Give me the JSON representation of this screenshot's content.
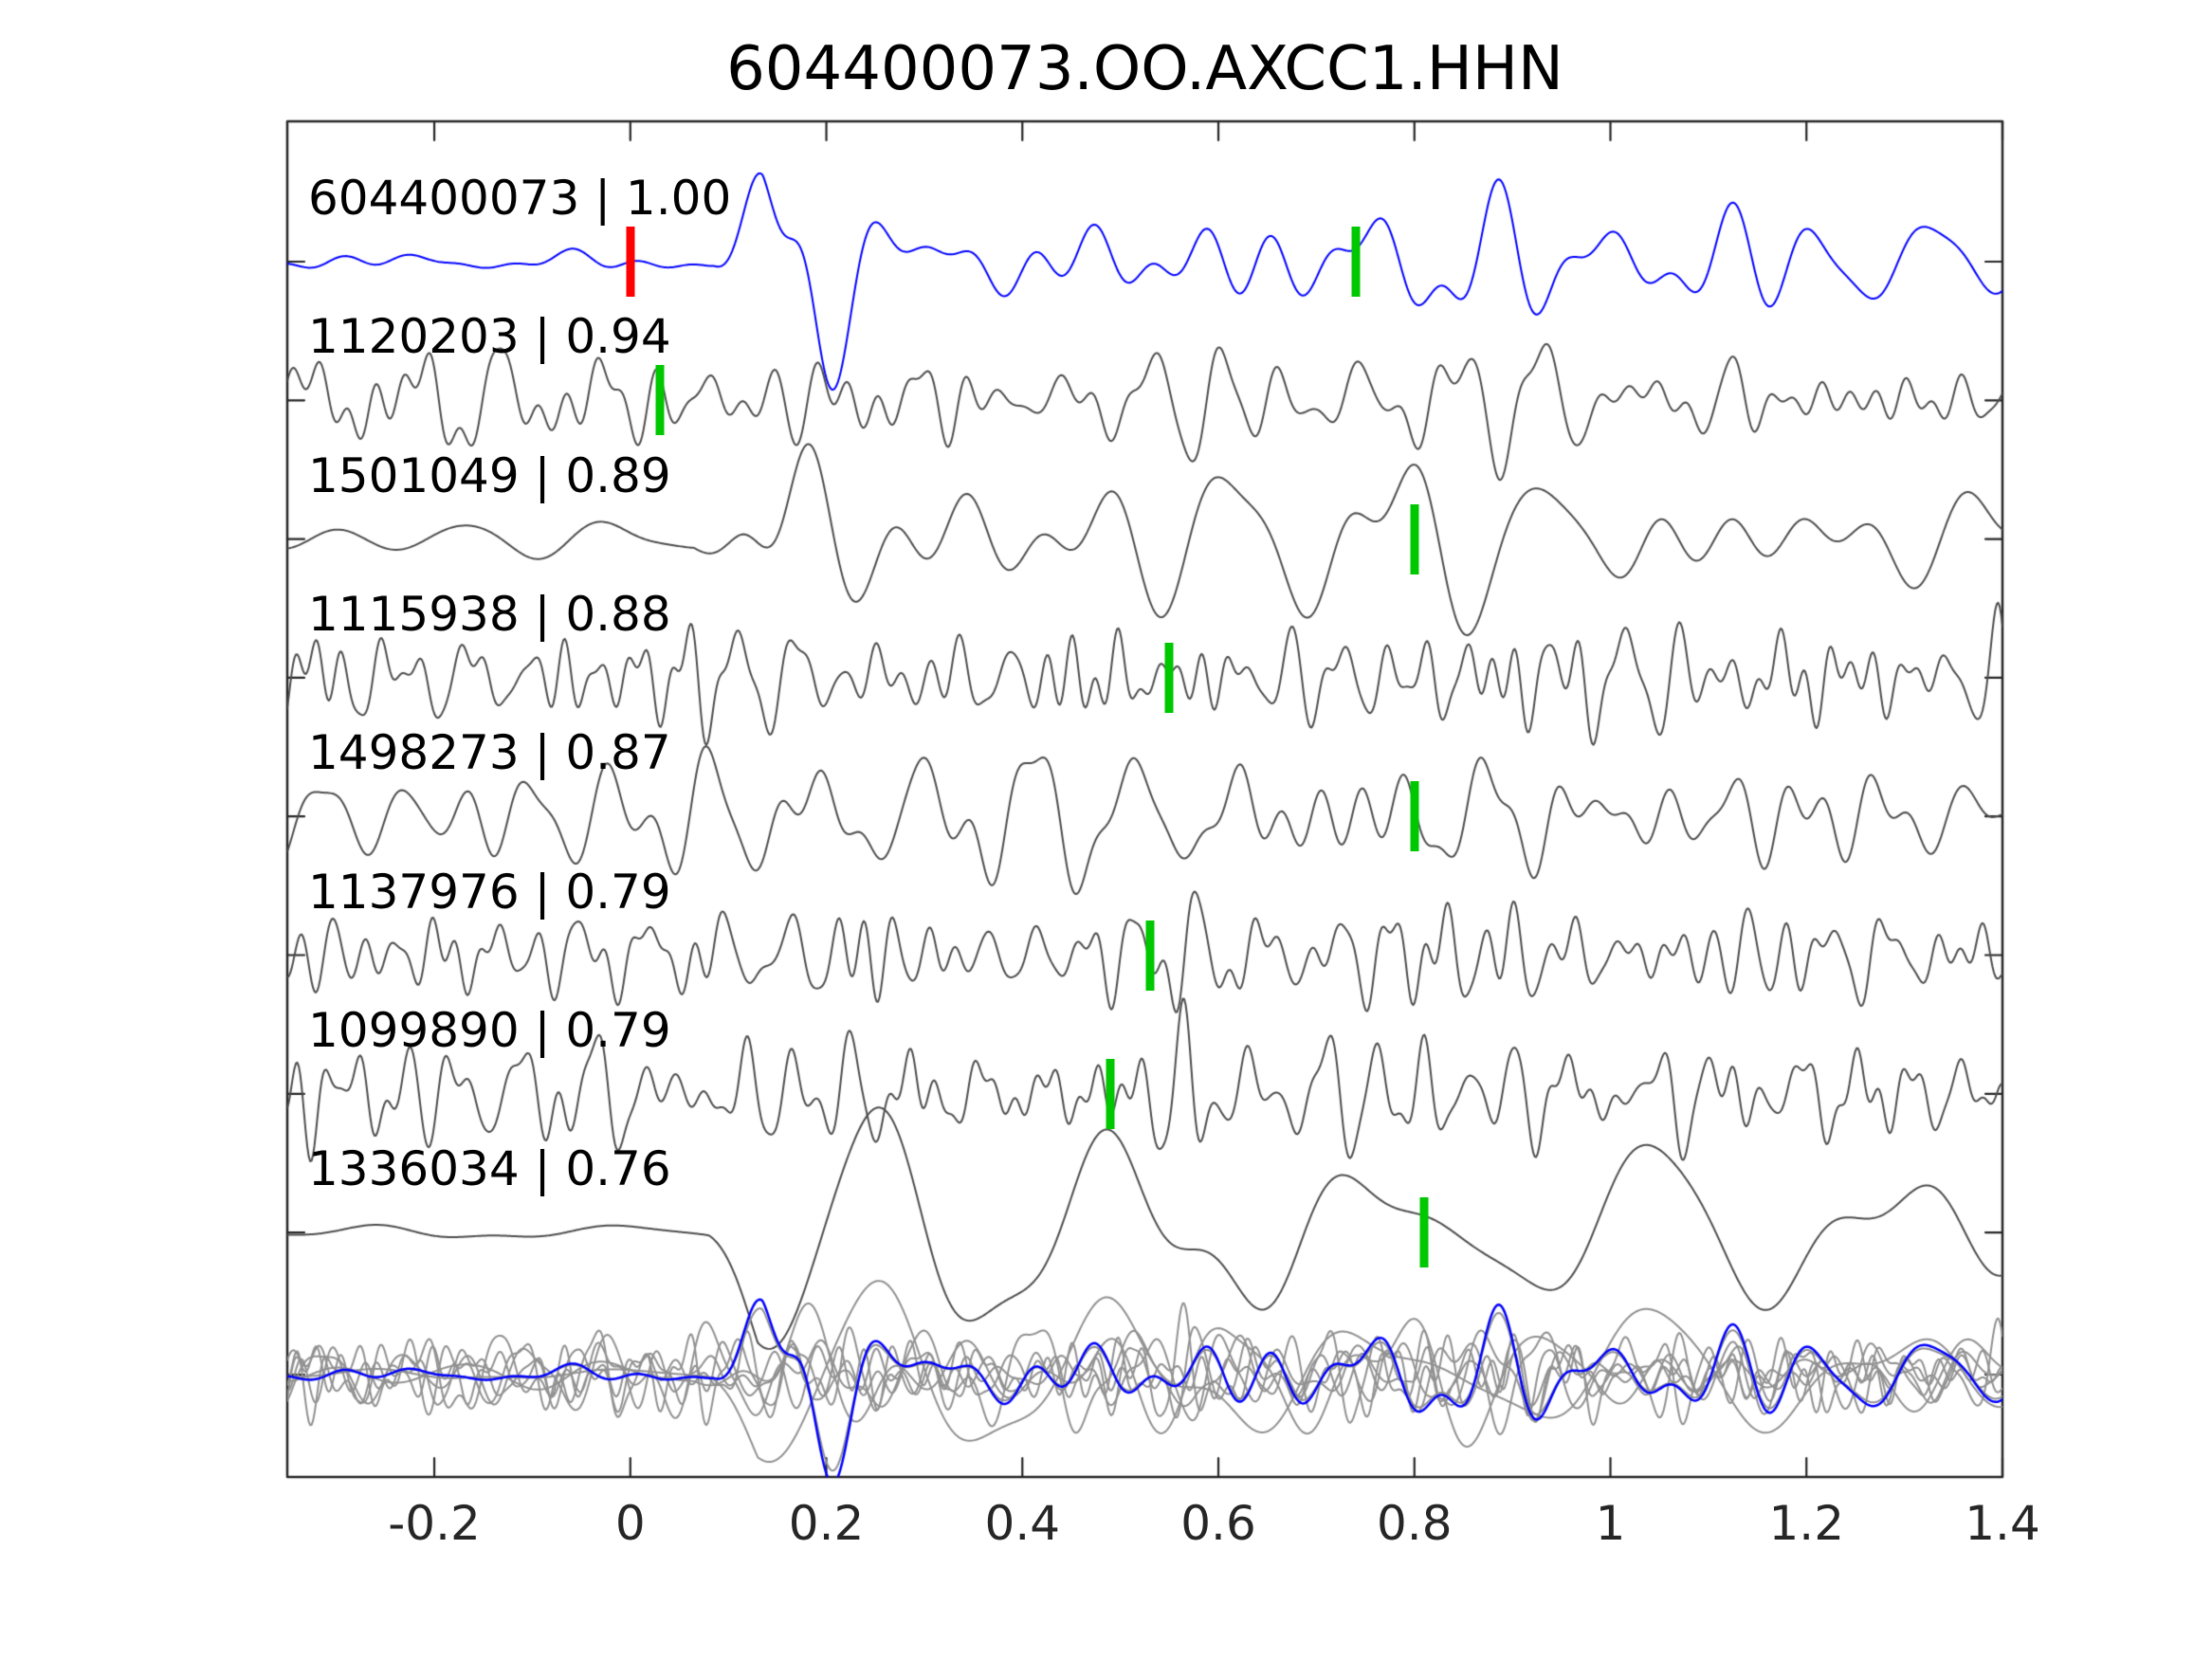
{
  "title": "604400073.OO.AXCC1.HHN",
  "colors": {
    "background": "#ffffff",
    "template_blue": "#0000ff",
    "trace_gray": "#4d4d4d",
    "overlay_gray": "#919191",
    "pick_green": "#00c800",
    "pick_red": "#ff0000",
    "axis": "#262626",
    "text": "#000000"
  },
  "chart_data": {
    "type": "line",
    "subtype": "seismic-waveform-correlation-stack",
    "title": "604400073.OO.AXCC1.HHN",
    "xlabel": "",
    "ylabel": "",
    "xlim": [
      -0.35,
      1.4
    ],
    "xtick_values": [
      -0.2,
      0,
      0.2,
      0.4,
      0.6,
      0.8,
      1,
      1.2,
      1.4
    ],
    "xtick_labels": [
      "-0.2",
      "0",
      "0.2",
      "0.4",
      "0.6",
      "0.8",
      "1",
      "1.2",
      "1.4"
    ],
    "grid": false,
    "legend": false,
    "traces": [
      {
        "id": "604400073",
        "correlation": "1.00",
        "label": "604400073 | 1.00",
        "color_role": "template_blue",
        "picks": [
          {
            "time": 0.0,
            "color": "pick_red"
          },
          {
            "time": 0.74,
            "color": "pick_green"
          }
        ],
        "synth": {
          "seed": 9107,
          "freq": [
            5,
            18
          ],
          "falloff": 0.7,
          "amp": 0.2,
          "onset": 0.085,
          "quiet": 0.18,
          "bursts": [
            [
              0.17,
              0.05,
              1.2
            ],
            [
              0.84,
              0.1,
              0.45
            ]
          ]
        }
      },
      {
        "id": "1120203",
        "correlation": "0.94",
        "label": "1120203 | 0.94",
        "color_role": "trace_gray",
        "picks": [
          {
            "time": 0.03,
            "color": "pick_green"
          }
        ],
        "synth": {
          "seed": 4021,
          "freq": [
            9,
            38
          ],
          "falloff": 0.5,
          "amp": 0.17
        }
      },
      {
        "id": "1501049",
        "correlation": "0.89",
        "label": "1501049 | 0.89",
        "color_role": "trace_gray",
        "picks": [
          {
            "time": 0.8,
            "color": "pick_green"
          }
        ],
        "synth": {
          "seed": 7713,
          "freq": [
            5,
            16
          ],
          "falloff": 0.7,
          "amp": 0.2,
          "onset": 0.065,
          "quiet": 0.25,
          "bursts": [
            [
              0.16,
              0.05,
              0.7
            ],
            [
              1.0,
              0.12,
              0.35
            ]
          ]
        }
      },
      {
        "id": "1115938",
        "correlation": "0.88",
        "label": "1115938 | 0.88",
        "color_role": "trace_gray",
        "picks": [
          {
            "time": 0.55,
            "color": "pick_green"
          }
        ],
        "synth": {
          "seed": 3391,
          "freq": [
            12,
            48
          ],
          "falloff": 0.4,
          "amp": 0.19
        }
      },
      {
        "id": "1498273",
        "correlation": "0.87",
        "label": "1498273 | 0.87",
        "color_role": "trace_gray",
        "picks": [
          {
            "time": 0.8,
            "color": "pick_green"
          }
        ],
        "synth": {
          "seed": 5556,
          "freq": [
            8,
            26
          ],
          "falloff": 0.55,
          "amp": 0.18,
          "bursts": [
            [
              0.95,
              0.15,
              0.3
            ]
          ]
        }
      },
      {
        "id": "1137976",
        "correlation": "0.79",
        "label": "1137976 | 0.79",
        "color_role": "trace_gray",
        "picks": [
          {
            "time": 0.53,
            "color": "pick_green"
          }
        ],
        "synth": {
          "seed": 6120,
          "freq": [
            12,
            46
          ],
          "falloff": 0.4,
          "amp": 0.19
        }
      },
      {
        "id": "1099890",
        "correlation": "0.79",
        "label": "1099890 | 0.79",
        "color_role": "trace_gray",
        "picks": [
          {
            "time": 0.49,
            "color": "pick_green"
          }
        ],
        "synth": {
          "seed": 8420,
          "freq": [
            12,
            50
          ],
          "falloff": 0.4,
          "amp": 0.19
        }
      },
      {
        "id": "1336034",
        "correlation": "0.76",
        "label": "1336034 | 0.76",
        "color_role": "trace_gray",
        "picks": [
          {
            "time": 0.81,
            "color": "pick_green"
          }
        ],
        "synth": {
          "seed": 2688,
          "freq": [
            3.5,
            10
          ],
          "falloff": 0.8,
          "amp": 0.24,
          "onset": 0.08,
          "quiet": 0.1,
          "bursts": [
            [
              0.15,
              0.05,
              0.7
            ],
            [
              1.05,
              0.12,
              0.45
            ]
          ]
        }
      }
    ],
    "overlay_row": {
      "description": "all traces overlaid in gray with template trace in blue",
      "gray_amp_scale": 0.75,
      "blue_trace_index": 0,
      "blue_amp": 0.17
    }
  }
}
